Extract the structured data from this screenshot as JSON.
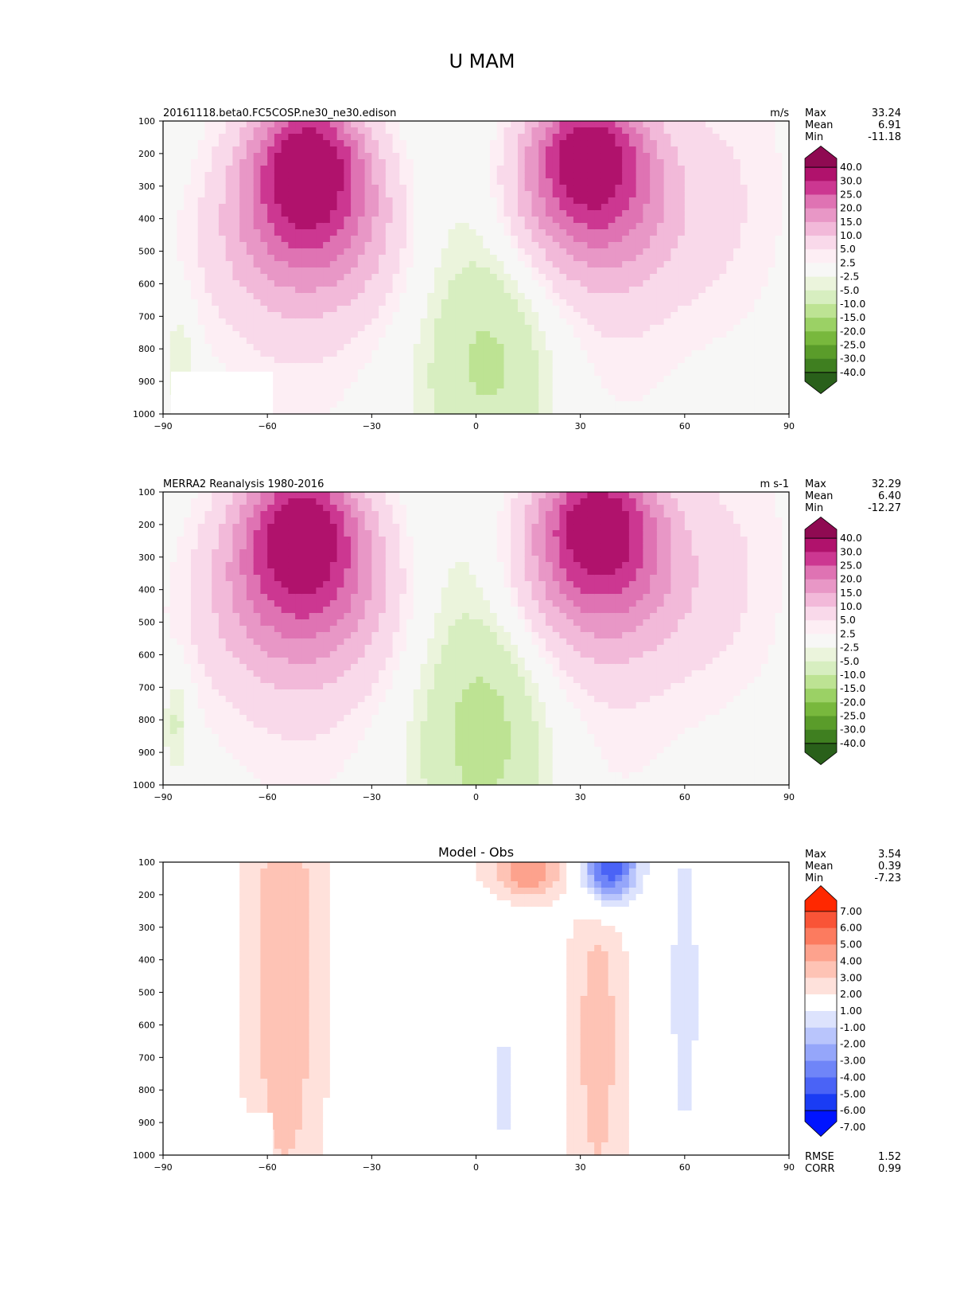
{
  "figure_title": "U MAM",
  "colors": {
    "positive_scale": [
      "#f7f7f6",
      "#fdeef4",
      "#f9d9ea",
      "#f2b9d9",
      "#e897c6",
      "#df73b3",
      "#cc3791",
      "#b0126c",
      "#8f0a52"
    ],
    "negative_scale": [
      "#f7f7f6",
      "#ebf4dc",
      "#d7eec0",
      "#bde393",
      "#9bd165",
      "#78b83d",
      "#5a9c2a",
      "#3f7f20",
      "#29601a"
    ],
    "diff_positive": [
      "#ffffff",
      "#ffe1db",
      "#fec3b5",
      "#fda28d",
      "#fc7b5f",
      "#f95437",
      "#ff2800"
    ],
    "diff_negative": [
      "#ffffff",
      "#dde3fd",
      "#b9c5fc",
      "#95a6fa",
      "#6f85f8",
      "#4a63f6",
      "#1a3cf4",
      "#0014ff"
    ]
  },
  "chart_data": [
    {
      "type": "contour",
      "title_left": "20161118.beta0.FC5COSP.ne30_ne30.edison",
      "title_right": "m/s",
      "xlim": [
        -90,
        90
      ],
      "ylim": [
        1000,
        100
      ],
      "x_ticks": [
        "−90",
        "−60",
        "−30",
        "0",
        "30",
        "60",
        "90"
      ],
      "y_ticks": [
        "100",
        "200",
        "300",
        "400",
        "500",
        "600",
        "700",
        "800",
        "900",
        "1000"
      ],
      "stats": {
        "labels": [
          "Max",
          "Mean",
          "Min"
        ],
        "values": [
          "33.24",
          "6.91",
          "-11.18"
        ]
      },
      "colorbar_labels": [
        "40.0",
        "30.0",
        "25.0",
        "20.0",
        "15.0",
        "10.0",
        "5.0",
        "2.5",
        "-2.5",
        "-5.0",
        "-10.0",
        "-15.0",
        "-20.0",
        "-25.0",
        "-30.0",
        "-40.0"
      ],
      "colorbar_type": "u",
      "jets": [
        {
          "lat": -48,
          "p": 240,
          "peak": 33.2,
          "sigma_lat": 11,
          "sigma_p": 260
        },
        {
          "lat": 32,
          "p": 210,
          "peak": 31.5,
          "sigma_lat": 12,
          "sigma_p": 240
        }
      ],
      "easterly": {
        "lat": 5,
        "p": 800,
        "min": -11.2
      },
      "polar_easterly": {
        "lat": -85,
        "p": 820,
        "min": -6
      }
    },
    {
      "type": "contour",
      "title_left": "MERRA2 Reanalysis 1980-2016",
      "title_right": "m s-1",
      "xlim": [
        -90,
        90
      ],
      "ylim": [
        1000,
        100
      ],
      "x_ticks": [
        "−90",
        "−60",
        "−30",
        "0",
        "30",
        "60",
        "90"
      ],
      "y_ticks": [
        "100",
        "200",
        "300",
        "400",
        "500",
        "600",
        "700",
        "800",
        "900",
        "1000"
      ],
      "stats": {
        "labels": [
          "Max",
          "Mean",
          "Min"
        ],
        "values": [
          "32.29",
          "6.40",
          "-12.27"
        ]
      },
      "colorbar_labels": [
        "40.0",
        "30.0",
        "25.0",
        "20.0",
        "15.0",
        "10.0",
        "5.0",
        "2.5",
        "-2.5",
        "-5.0",
        "-10.0",
        "-15.0",
        "-20.0",
        "-25.0",
        "-30.0",
        "-40.0"
      ],
      "colorbar_type": "u",
      "jets": [
        {
          "lat": -50,
          "p": 230,
          "peak": 32.3,
          "sigma_lat": 12,
          "sigma_p": 270
        },
        {
          "lat": 35,
          "p": 200,
          "peak": 31.0,
          "sigma_lat": 12,
          "sigma_p": 240
        }
      ],
      "easterly": {
        "lat": 3,
        "p": 820,
        "min": -12.3
      },
      "polar_easterly": {
        "lat": -86,
        "p": 800,
        "min": -7
      }
    },
    {
      "type": "contour",
      "title_center": "Model - Obs",
      "xlim": [
        -90,
        90
      ],
      "ylim": [
        1000,
        100
      ],
      "x_ticks": [
        "−90",
        "−60",
        "−30",
        "0",
        "30",
        "60",
        "90"
      ],
      "y_ticks": [
        "100",
        "200",
        "300",
        "400",
        "500",
        "600",
        "700",
        "800",
        "900",
        "1000"
      ],
      "stats": {
        "labels": [
          "Max",
          "Mean",
          "Min"
        ],
        "values": [
          "3.54",
          "0.39",
          "-7.23"
        ]
      },
      "bottom_stats": {
        "labels": [
          "RMSE",
          "CORR"
        ],
        "values": [
          "1.52",
          "0.99"
        ]
      },
      "colorbar_labels": [
        "7.00",
        "6.00",
        "5.00",
        "4.00",
        "3.00",
        "2.00",
        "1.00",
        "-1.00",
        "-2.00",
        "-3.00",
        "-4.00",
        "-5.00",
        "-6.00",
        "-7.00"
      ],
      "colorbar_type": "diff",
      "features": [
        {
          "lat": -55,
          "p": 450,
          "amp": 2.6,
          "sigma_lat": 8,
          "sigma_p": 600
        },
        {
          "lat": 35,
          "p": 650,
          "amp": 2.2,
          "sigma_lat": 6,
          "sigma_p": 500
        },
        {
          "lat": 15,
          "p": 130,
          "amp": 3.5,
          "sigma_lat": 8,
          "sigma_p": 60
        },
        {
          "lat": 38,
          "p": 110,
          "amp": -7.2,
          "sigma_lat": 6,
          "sigma_p": 90
        },
        {
          "lat": 60,
          "p": 500,
          "amp": -1.6,
          "sigma_lat": 5,
          "sigma_p": 600
        },
        {
          "lat": 8,
          "p": 800,
          "amp": -1.5,
          "sigma_lat": 5,
          "sigma_p": 250
        }
      ]
    }
  ]
}
